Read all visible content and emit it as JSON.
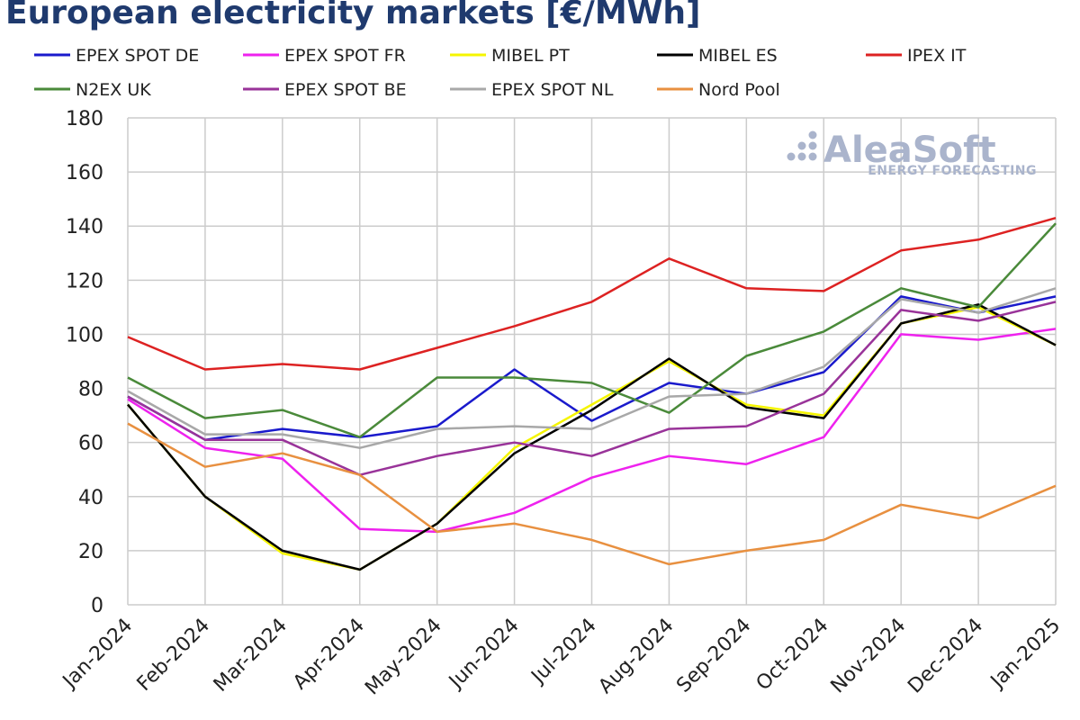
{
  "chart_data": {
    "type": "line",
    "title": "European electricity markets [€/MWh]",
    "xlabel": "",
    "ylabel": "",
    "categories": [
      "Jan-2024",
      "Feb-2024",
      "Mar-2024",
      "Apr-2024",
      "May-2024",
      "Jun-2024",
      "Jul-2024",
      "Aug-2024",
      "Sep-2024",
      "Oct-2024",
      "Nov-2024",
      "Dec-2024",
      "Jan-2025"
    ],
    "ylim": [
      0,
      180
    ],
    "yticks": [
      0,
      20,
      40,
      60,
      80,
      100,
      120,
      140,
      160,
      180
    ],
    "grid": true,
    "legend_position": "top",
    "series": [
      {
        "name": "EPEX SPOT DE",
        "color": "#1a1acc",
        "values": [
          77,
          61,
          65,
          62,
          66,
          87,
          68,
          82,
          78,
          86,
          114,
          108,
          114
        ]
      },
      {
        "name": "EPEX SPOT FR",
        "color": "#ee22ee",
        "values": [
          76,
          58,
          54,
          28,
          27,
          34,
          47,
          55,
          52,
          62,
          100,
          98,
          102
        ]
      },
      {
        "name": "MIBEL PT",
        "color": "#f5f500",
        "values": [
          74,
          40,
          19,
          13,
          30,
          58,
          74,
          90,
          74,
          70,
          104,
          110,
          96
        ]
      },
      {
        "name": "MIBEL ES",
        "color": "#000000",
        "values": [
          74,
          40,
          20,
          13,
          30,
          56,
          72,
          91,
          73,
          69,
          104,
          111,
          96
        ]
      },
      {
        "name": "IPEX IT",
        "color": "#dd2222",
        "values": [
          99,
          87,
          89,
          87,
          95,
          103,
          112,
          128,
          117,
          116,
          131,
          135,
          143
        ]
      },
      {
        "name": "N2EX UK",
        "color": "#4a8a3a",
        "values": [
          84,
          69,
          72,
          62,
          84,
          84,
          82,
          71,
          92,
          101,
          117,
          110,
          141
        ]
      },
      {
        "name": "EPEX SPOT BE",
        "color": "#993399",
        "values": [
          77,
          61,
          61,
          48,
          55,
          60,
          55,
          65,
          66,
          78,
          109,
          105,
          112
        ]
      },
      {
        "name": "EPEX SPOT NL",
        "color": "#a8a8a8",
        "values": [
          79,
          63,
          63,
          58,
          65,
          66,
          65,
          77,
          78,
          88,
          113,
          108,
          117
        ]
      },
      {
        "name": "Nord Pool",
        "color": "#e89040",
        "values": [
          67,
          51,
          56,
          48,
          27,
          30,
          24,
          15,
          20,
          24,
          37,
          32,
          44
        ]
      }
    ]
  },
  "logo": {
    "name": "AleaSoft",
    "tagline": "ENERGY FORECASTING"
  }
}
